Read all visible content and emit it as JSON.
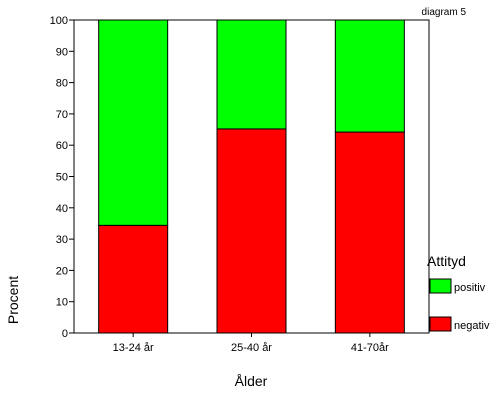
{
  "chart_data": {
    "type": "bar",
    "stacked": true,
    "label": "diagram 5",
    "xlabel": "Ålder",
    "ylabel": "Procent",
    "ylim": [
      0,
      100
    ],
    "yticks": [
      0,
      10,
      20,
      30,
      40,
      50,
      60,
      70,
      80,
      90,
      100
    ],
    "categories": [
      "13-24 år",
      "25-40 år",
      "41-70år"
    ],
    "series": [
      {
        "name": "negativ",
        "values": [
          34.4,
          65.2,
          64.2
        ],
        "color": "#ff0000"
      },
      {
        "name": "positiv",
        "values": [
          65.6,
          34.8,
          35.8
        ],
        "color": "#00ff00"
      }
    ],
    "legend": {
      "title": "Attityd",
      "placement": "right",
      "order": [
        "positiv",
        "negativ"
      ]
    },
    "grid": false
  }
}
